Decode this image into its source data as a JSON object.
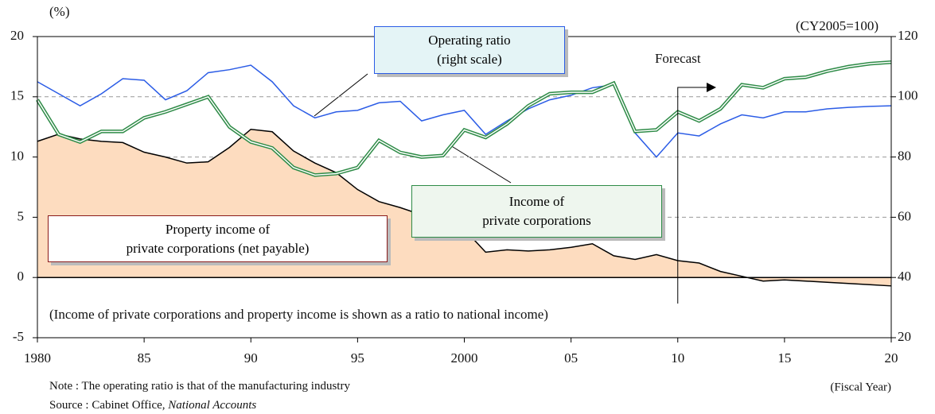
{
  "chart_data": {
    "type": "line",
    "left_unit": "(%)",
    "right_unit": "(CY2005=100)",
    "forecast_label": "Forecast",
    "forecast_from": 2010,
    "note_in_plot": "(Income of private corporations and property income is shown as a ratio to national income)",
    "x_axis_label": "(Fiscal Year)",
    "note": "Note : The operating ratio is that of the manufacturing industry",
    "source": {
      "text": "Source : Cabinet Office,",
      "title": "National Accounts"
    },
    "x": [
      1980,
      1981,
      1982,
      1983,
      1984,
      1985,
      1986,
      1987,
      1988,
      1989,
      1990,
      1991,
      1992,
      1993,
      1994,
      1995,
      1996,
      1997,
      1998,
      1999,
      2000,
      2001,
      2002,
      2003,
      2004,
      2005,
      2006,
      2007,
      2008,
      2009,
      2010,
      2011,
      2012,
      2013,
      2014,
      2015,
      2016,
      2017,
      2018,
      2019,
      2020
    ],
    "series": [
      {
        "name": "Property income of\nprivate corporations (net payable)",
        "color": "#000000",
        "fill": "#fddcbf",
        "axis": "y",
        "values": [
          11.3,
          11.9,
          11.5,
          11.3,
          11.2,
          10.4,
          10.0,
          9.5,
          9.6,
          10.8,
          12.3,
          12.1,
          10.5,
          9.5,
          8.7,
          7.3,
          6.3,
          5.8,
          5.2,
          4.5,
          4.0,
          2.1,
          2.3,
          2.2,
          2.3,
          2.5,
          2.8,
          1.8,
          1.5,
          1.9,
          1.4,
          1.2,
          0.5,
          0.1,
          -0.3,
          -0.2,
          -0.3,
          -0.4,
          -0.5,
          -0.6,
          -0.7
        ]
      },
      {
        "name": "Operating ratio\n(right scale)",
        "color": "#2b5ce6",
        "axis": "y2",
        "values": [
          105,
          101,
          97,
          101,
          106,
          105.5,
          99,
          102,
          108,
          109,
          110.5,
          105,
          97,
          93,
          95,
          95.5,
          98,
          98.5,
          92,
          94,
          95.5,
          87.5,
          92,
          96,
          99,
          100.5,
          103,
          104,
          88,
          80,
          88,
          87,
          91,
          94,
          93,
          95,
          95,
          96,
          96.5,
          96.8,
          97
        ]
      },
      {
        "name": "Income of\nprivate corporations",
        "color": "#2e8b47",
        "axis": "y2",
        "values": [
          99,
          87.5,
          85,
          88.5,
          88.5,
          93,
          95,
          97.5,
          100,
          90,
          85,
          83,
          76.5,
          74,
          74.5,
          76.5,
          85.5,
          81.5,
          80,
          80.5,
          89,
          86.5,
          91,
          97,
          101,
          101.5,
          101.5,
          104.5,
          88.5,
          89,
          95,
          92,
          96,
          104,
          103,
          106,
          106.5,
          108.5,
          110,
          111,
          111.5
        ]
      }
    ],
    "xlim": [
      1980,
      2020
    ],
    "xticks": [
      1980,
      {
        "value": 1985,
        "label": "85"
      },
      {
        "value": 1990,
        "label": "90"
      },
      {
        "value": 1995,
        "label": "95"
      },
      2000,
      {
        "value": 2005,
        "label": "05"
      },
      {
        "value": 2010,
        "label": "10"
      },
      {
        "value": 2015,
        "label": "15"
      },
      {
        "value": 2020,
        "label": "20"
      }
    ],
    "ylim": [
      -5,
      20
    ],
    "yticks": [
      -5,
      0,
      5,
      10,
      15,
      20
    ],
    "y2lim": [
      20,
      120
    ],
    "y2ticks": [
      20,
      40,
      60,
      80,
      100,
      120
    ],
    "grid": true
  }
}
